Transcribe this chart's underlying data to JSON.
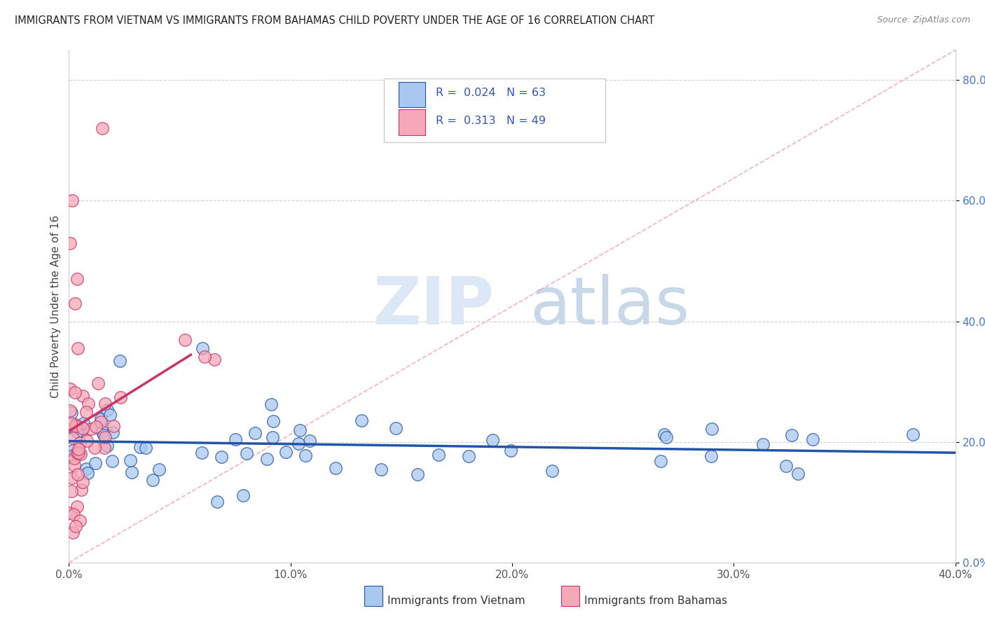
{
  "title": "IMMIGRANTS FROM VIETNAM VS IMMIGRANTS FROM BAHAMAS CHILD POVERTY UNDER THE AGE OF 16 CORRELATION CHART",
  "source": "Source: ZipAtlas.com",
  "ylabel": "Child Poverty Under the Age of 16",
  "xlabel_vietnam": "Immigrants from Vietnam",
  "xlabel_bahamas": "Immigrants from Bahamas",
  "xlim": [
    0.0,
    0.4
  ],
  "ylim": [
    0.0,
    0.85
  ],
  "yticks": [
    0.0,
    0.2,
    0.4,
    0.6,
    0.8
  ],
  "xticks": [
    0.0,
    0.1,
    0.2,
    0.3,
    0.4
  ],
  "R_vietnam": 0.024,
  "N_vietnam": 63,
  "R_bahamas": 0.313,
  "N_bahamas": 49,
  "color_vietnam": "#a8c8f0",
  "color_bahamas": "#f4a8b8",
  "line_color_vietnam": "#2255aa",
  "line_color_bahamas": "#cc3366",
  "diag_color": "#f4a8b8",
  "watermark_zip": "ZIP",
  "watermark_atlas": "atlas",
  "watermark_color": "#dce8f5",
  "watermark_atlas_color": "#c8d8e8",
  "background_color": "#ffffff",
  "grid_color": "#cccccc",
  "legend_color": "#3355bb",
  "tick_color_y": "#4477cc",
  "tick_color_x": "#555555"
}
